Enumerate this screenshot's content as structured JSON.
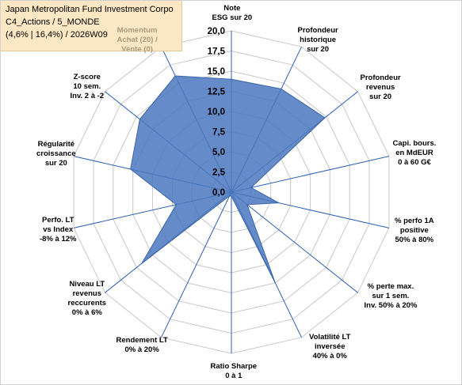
{
  "title": {
    "lines": [
      "Japan Metropolitan Fund Investment Corpo",
      "C4_Actions / 5_MONDE",
      "(4,6% | 16,4%) / 2026W09"
    ]
  },
  "colors": {
    "fill": "#4a78be",
    "stroke": "#3a64a8",
    "axis": "#2e5fb5",
    "grid": "#c8c8c8",
    "title_bg": "#fbe7c3"
  },
  "chart_data": {
    "type": "radar",
    "r_range": [
      0,
      20
    ],
    "r_ticks": [
      "0,0",
      "2,5",
      "5,0",
      "7,5",
      "10,0",
      "12,5",
      "15,0",
      "17,5",
      "20,0"
    ],
    "axes": [
      {
        "lines": [
          "Note",
          "ESG sur 20"
        ]
      },
      {
        "lines": [
          "Profondeur",
          "historique",
          "sur 20"
        ]
      },
      {
        "lines": [
          "Profondeur",
          "revenus",
          "sur 20"
        ]
      },
      {
        "lines": [
          "Capi. bours.",
          "en MdEUR",
          "0 à 60 G€"
        ]
      },
      {
        "lines": [
          "% perfo 1A",
          "positive",
          "50% à 80%"
        ]
      },
      {
        "lines": [
          "% perte max.",
          "sur 1 sem.",
          "Inv. 50% à 20%"
        ]
      },
      {
        "lines": [
          "Volatilité LT",
          "inversée",
          "40% à 0%"
        ]
      },
      {
        "lines": [
          "Ratio Sharpe",
          "0 à 1"
        ]
      },
      {
        "lines": [
          "Rendement LT",
          "0% à 20%"
        ]
      },
      {
        "lines": [
          "Niveau LT",
          "revenus",
          "reccurents",
          "0% à 6%"
        ]
      },
      {
        "lines": [
          "Perfo. LT",
          "vs Index",
          "-8% à 12%"
        ]
      },
      {
        "lines": [
          "Régularité",
          "croissance",
          "sur 20"
        ]
      },
      {
        "lines": [
          "Z-score",
          "10 sem.",
          "Inv. 2 à -2"
        ]
      },
      {
        "lines": [
          "Momentum",
          "Achat (20) /",
          "Vente (0)"
        ]
      }
    ],
    "series": [
      {
        "values": [
          14.0,
          14.2,
          14.8,
          2.5,
          6.0,
          2.5,
          12.5,
          0.5,
          0.5,
          14.2,
          7.0,
          12.8,
          14.5,
          16.0
        ]
      }
    ]
  }
}
